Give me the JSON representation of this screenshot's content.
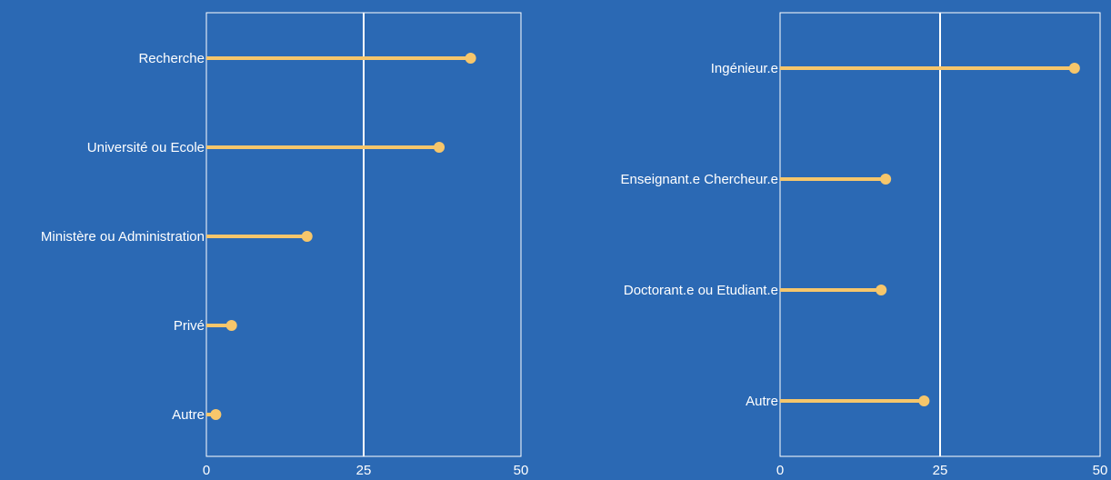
{
  "chart_data": [
    {
      "type": "lollipop",
      "orientation": "horizontal",
      "categories": [
        "Recherche",
        "Université ou Ecole",
        "Ministère ou Administration",
        "Privé",
        "Autre"
      ],
      "values": [
        42,
        37,
        16,
        4,
        1.5
      ],
      "xlim": [
        0,
        50
      ],
      "xticks": [
        "0",
        "25",
        "50"
      ],
      "reference_line": 25,
      "grid": false
    },
    {
      "type": "lollipop",
      "orientation": "horizontal",
      "categories": [
        "Ingénieur.e",
        "Enseignant.e Chercheur.e",
        "Doctorant.e ou Etudiant.e",
        "Autre"
      ],
      "values": [
        46,
        16.5,
        15.8,
        22.5
      ],
      "xlim": [
        0,
        50
      ],
      "xticks": [
        "0",
        "25",
        "50"
      ],
      "reference_line": 25,
      "grid": false
    }
  ],
  "colors": {
    "background": "#2b69b4",
    "lollipop": "#f6c66b",
    "axis": "#ffffff",
    "text": "#ffffff"
  }
}
